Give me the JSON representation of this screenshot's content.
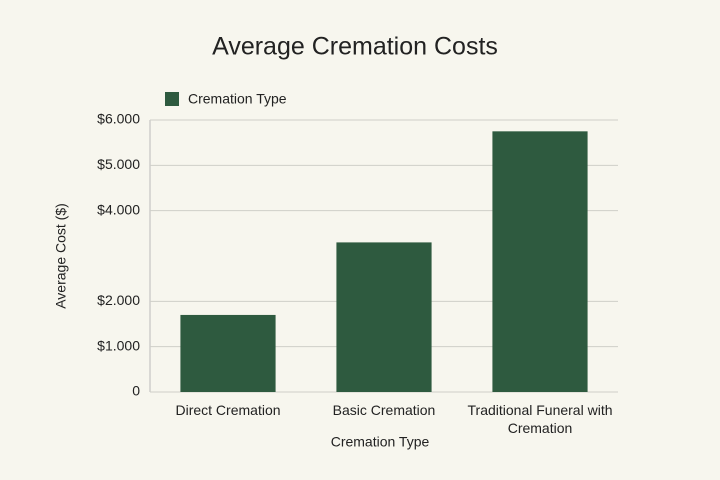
{
  "chart_data": {
    "type": "bar",
    "title": "Average Cremation Costs",
    "legend": "Cremation Type",
    "legend_position": "top-left",
    "x_label": "Cremation Type",
    "y_label": "Average Cost ($)",
    "categories": [
      "Direct Cremation",
      "Basic Cremation",
      "Traditional Funeral with Cremation"
    ],
    "values": [
      1700,
      3300,
      5750
    ],
    "color": "#2e5a3f",
    "ylim": [
      0,
      6000
    ],
    "yticks": [
      0,
      {
        "value": 1000,
        "label": "$1.000"
      },
      {
        "value": 2000,
        "label": "$2.000"
      },
      {
        "value": 4000,
        "label": "$4.000"
      },
      {
        "value": 5000,
        "label": "$5.000"
      },
      {
        "value": 6000,
        "label": "$6.000"
      }
    ],
    "grid": true
  }
}
